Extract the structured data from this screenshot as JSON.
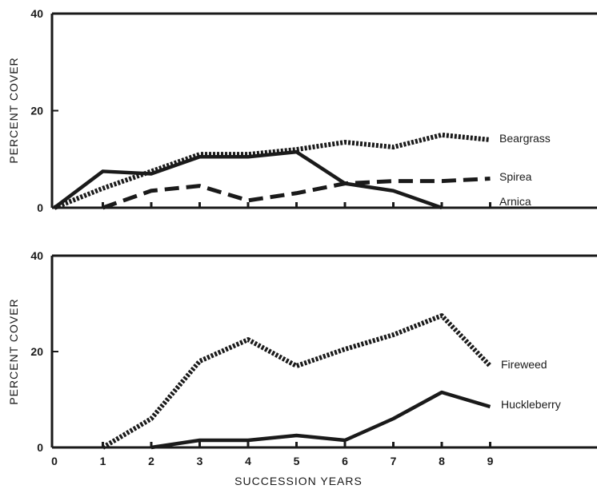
{
  "chart_data": [
    {
      "type": "line",
      "ylabel": "PERCENT COVER",
      "ylim": [
        0,
        40
      ],
      "yticks": [
        "0",
        "20",
        "40"
      ],
      "x": [
        0,
        1,
        2,
        3,
        4,
        5,
        6,
        7,
        8,
        9
      ],
      "grid": false,
      "legend": "labels at right end of each line",
      "series": [
        {
          "name": "Beargrass",
          "style": "dotted",
          "x": [
            0,
            1,
            2,
            3,
            4,
            5,
            6,
            7,
            8,
            9
          ],
          "values": [
            0,
            4,
            7.5,
            11,
            11,
            12,
            13.5,
            12.5,
            15,
            14
          ]
        },
        {
          "name": "Spirea",
          "style": "dashed",
          "x": [
            1,
            2,
            3,
            4,
            5,
            6,
            7,
            8,
            9
          ],
          "values": [
            0,
            3.5,
            4.5,
            1.5,
            3,
            5,
            5.5,
            5.5,
            6
          ]
        },
        {
          "name": "Arnica",
          "style": "solid",
          "x": [
            0,
            1,
            2,
            3,
            4,
            5,
            6,
            7,
            8
          ],
          "values": [
            0,
            7.5,
            7,
            10.5,
            10.5,
            11.5,
            5,
            3.5,
            0
          ]
        }
      ]
    },
    {
      "type": "line",
      "xlabel": "SUCCESSION YEARS",
      "ylabel": "PERCENT COVER",
      "ylim": [
        0,
        40
      ],
      "yticks": [
        "0",
        "20",
        "40"
      ],
      "xticks": [
        "0",
        "1",
        "2",
        "3",
        "4",
        "5",
        "6",
        "7",
        "8",
        "9"
      ],
      "grid": false,
      "legend": "labels at right end of each line",
      "series": [
        {
          "name": "Fireweed",
          "style": "dotted",
          "x": [
            1,
            2,
            3,
            4,
            5,
            6,
            7,
            8,
            9
          ],
          "values": [
            0,
            6,
            18,
            22.5,
            17,
            20.5,
            23.5,
            27.5,
            17
          ]
        },
        {
          "name": "Huckleberry",
          "style": "solid",
          "x": [
            2,
            3,
            4,
            5,
            6,
            7,
            8,
            9
          ],
          "values": [
            0,
            1.5,
            1.5,
            2.5,
            1.5,
            6,
            11.5,
            8.5
          ]
        }
      ]
    }
  ]
}
